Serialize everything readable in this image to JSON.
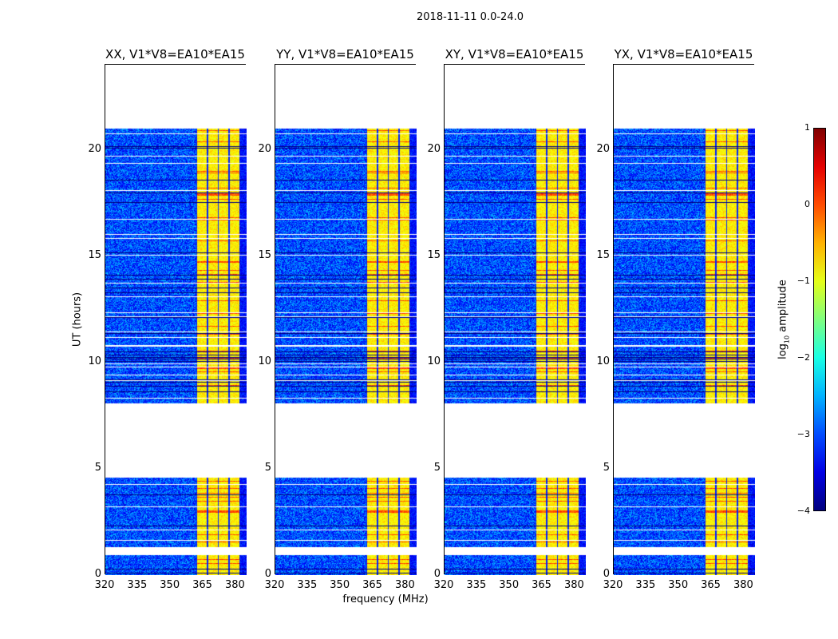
{
  "suptitle": "2018-11-11 0.0-24.0",
  "chart_data": {
    "type": "heatmap",
    "xlabel": "frequency (MHz)",
    "ylabel": "UT (hours)",
    "xlim": [
      320,
      385
    ],
    "ylim": [
      0,
      24
    ],
    "xticks": [
      "320",
      "335",
      "350",
      "365",
      "380"
    ],
    "yticks": [
      "0",
      "5",
      "10",
      "15",
      "20"
    ],
    "xtick_values": [
      320,
      335,
      350,
      365,
      380
    ],
    "ytick_values": [
      0,
      5,
      10,
      15,
      20
    ],
    "observed_time_ranges_hours": [
      [
        0,
        0.95
      ],
      [
        1.35,
        4.6
      ],
      [
        8.1,
        21.0
      ]
    ],
    "rfi_band_mhz": [
      361.5,
      381.5
    ],
    "background_log_amplitude": -3,
    "rfi_band_log_amplitude": -0.8,
    "panels": [
      {
        "title": "XX, V1*V8=EA10*EA15"
      },
      {
        "title": "YY, V1*V8=EA10*EA15"
      },
      {
        "title": "XY, V1*V8=EA10*EA15"
      },
      {
        "title": "YX, V1*V8=EA10*EA15"
      }
    ],
    "colorbar": {
      "label_prefix": "log",
      "label_sub": "10",
      "label_suffix": " amplitude",
      "range": [
        -4,
        1
      ],
      "ticks": [
        "1",
        "0",
        "−1",
        "−2",
        "−3",
        "−4"
      ],
      "tick_values": [
        1,
        0,
        -1,
        -2,
        -3,
        -4
      ],
      "colormap": "jet"
    }
  }
}
